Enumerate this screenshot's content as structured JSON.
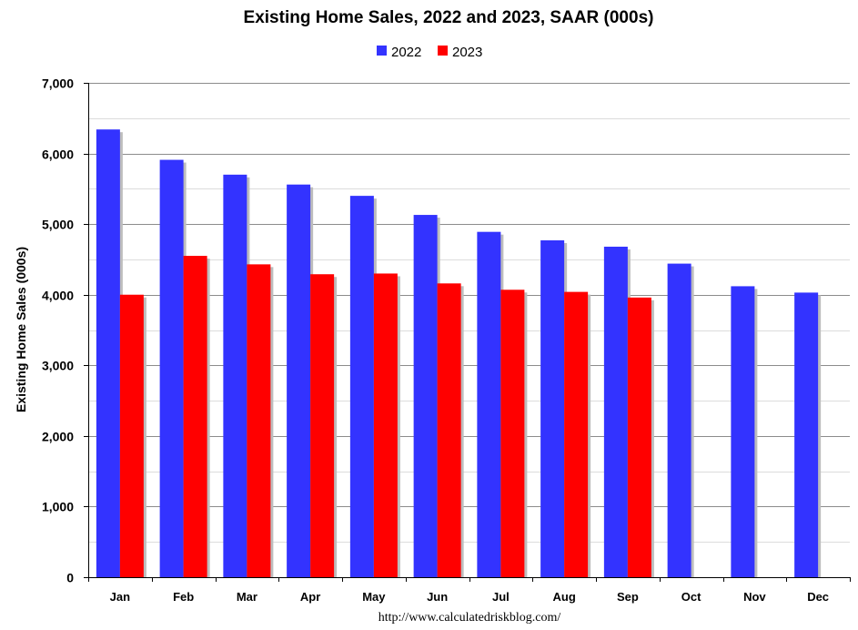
{
  "chart_data": {
    "type": "bar",
    "title": "Existing Home Sales,  2022 and 2023, SAAR (000s)",
    "ylabel": "Existing Home Sales (000s)",
    "xlabel": "",
    "source": "http://www.calculatedriskblog.com/",
    "categories": [
      "Jan",
      "Feb",
      "Mar",
      "Apr",
      "May",
      "Jun",
      "Jul",
      "Aug",
      "Sep",
      "Oct",
      "Nov",
      "Dec"
    ],
    "series": [
      {
        "name": "2022",
        "color": "#3333ff",
        "values": [
          6340,
          5910,
          5700,
          5560,
          5400,
          5130,
          4890,
          4770,
          4680,
          4440,
          4120,
          4030
        ]
      },
      {
        "name": "2023",
        "color": "#ff0000",
        "values": [
          4000,
          4550,
          4430,
          4290,
          4300,
          4160,
          4070,
          4040,
          3960,
          null,
          null,
          null
        ]
      }
    ],
    "ylim": [
      0,
      7000
    ],
    "yticks": [
      0,
      1000,
      2000,
      3000,
      4000,
      5000,
      6000,
      7000
    ],
    "ytick_labels": [
      "0",
      "1,000",
      "2,000",
      "3,000",
      "4,000",
      "5,000",
      "6,000",
      "7,000"
    ],
    "grid": true,
    "legend": "top-center"
  }
}
